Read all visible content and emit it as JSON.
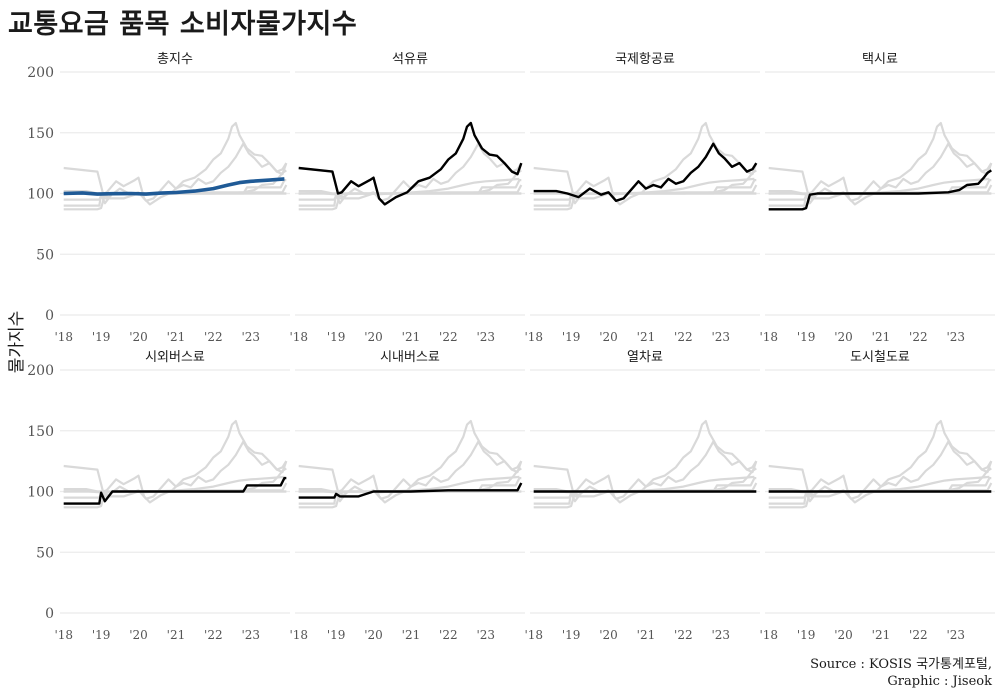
{
  "title": "교통요금 품목 소비자물가지수",
  "caption": {
    "line1": "Source : KOSIS 국가통계포털,",
    "line2": "Graphic : Jiseok"
  },
  "colors": {
    "highlight": "#1f5a96",
    "line": "#000000",
    "ghost": "#d9d9d9",
    "grid": "#ebebeb"
  },
  "chart_data": {
    "type": "line",
    "facets": [
      "총지수",
      "석유류",
      "국제항공료",
      "택시료",
      "시외버스료",
      "시내버스료",
      "열차료",
      "도시철도료"
    ],
    "ylabel": "물가지수",
    "ylim": [
      0,
      200
    ],
    "yticks": [
      0,
      50,
      100,
      150,
      200
    ],
    "xlim": [
      2017.9,
      2024.05
    ],
    "xticks": [
      2018,
      2019,
      2020,
      2021,
      2022,
      2023
    ],
    "xtick_labels": [
      "'18",
      "'19",
      "'20",
      "'21",
      "'22",
      "'23"
    ],
    "series": [
      {
        "name": "총지수",
        "x": [
          2018,
          2018.5,
          2018.9,
          2019.3,
          2019.8,
          2020.2,
          2020.6,
          2021.0,
          2021.5,
          2022.0,
          2022.4,
          2022.7,
          2023.0,
          2023.5,
          2023.9
        ],
        "y": [
          100,
          100.5,
          99.5,
          99.8,
          100,
          99.5,
          100.3,
          100.8,
          102,
          104,
          107,
          109,
          110,
          111,
          112
        ]
      },
      {
        "name": "석유류",
        "x": [
          2018,
          2018.9,
          2019.05,
          2019.15,
          2019.4,
          2019.6,
          2019.9,
          2020.0,
          2020.15,
          2020.3,
          2020.6,
          2020.9,
          2021.0,
          2021.2,
          2021.5,
          2021.8,
          2022.0,
          2022.2,
          2022.4,
          2022.5,
          2022.6,
          2022.7,
          2022.9,
          2023.1,
          2023.3,
          2023.5,
          2023.7,
          2023.85,
          2023.95
        ],
        "y": [
          121,
          118,
          100,
          101,
          110,
          106,
          111,
          113,
          96,
          91,
          97,
          101,
          104,
          110,
          113,
          120,
          128,
          133,
          145,
          155,
          158,
          148,
          137,
          132,
          131,
          125,
          118,
          116,
          125
        ]
      },
      {
        "name": "국제항공료",
        "x": [
          2018,
          2018.6,
          2018.9,
          2019.2,
          2019.5,
          2019.8,
          2020.0,
          2020.2,
          2020.4,
          2020.6,
          2020.8,
          2021.0,
          2021.2,
          2021.4,
          2021.6,
          2021.8,
          2022.0,
          2022.2,
          2022.4,
          2022.6,
          2022.8,
          2022.95,
          2023.1,
          2023.3,
          2023.5,
          2023.7,
          2023.85,
          2023.95
        ],
        "y": [
          102,
          102,
          100,
          97,
          104,
          99,
          101,
          94,
          96,
          103,
          110,
          104,
          107,
          105,
          112,
          108,
          110,
          117,
          122,
          130,
          141,
          133,
          129,
          122,
          125,
          118,
          120,
          125
        ]
      },
      {
        "name": "택시료",
        "x": [
          2018,
          2018.9,
          2019.0,
          2019.1,
          2019.3,
          2019.5,
          2020.0,
          2021.0,
          2022.0,
          2022.8,
          2023.1,
          2023.3,
          2023.6,
          2023.75,
          2023.85,
          2023.95
        ],
        "y": [
          87,
          87,
          88,
          99,
          100,
          100,
          100,
          100,
          100,
          101,
          103,
          107,
          108,
          113,
          117,
          119
        ]
      },
      {
        "name": "시외버스료",
        "x": [
          2018,
          2018.95,
          2019.0,
          2019.1,
          2019.3,
          2020.0,
          2021.0,
          2022.0,
          2022.8,
          2022.9,
          2023.5,
          2023.8,
          2023.9,
          2023.95
        ],
        "y": [
          90,
          90,
          99,
          92,
          100,
          100,
          100,
          100,
          100,
          105,
          105,
          105,
          111,
          111
        ]
      },
      {
        "name": "시내버스료",
        "x": [
          2018,
          2018.95,
          2019.0,
          2019.1,
          2019.6,
          2019.8,
          2020.0,
          2020.5,
          2021.0,
          2022.0,
          2023.0,
          2023.5,
          2023.85,
          2023.95
        ],
        "y": [
          95,
          95,
          98,
          96,
          96,
          98,
          100,
          100,
          100,
          101,
          101,
          101,
          101,
          107
        ]
      },
      {
        "name": "열차료",
        "x": [
          2018,
          2019,
          2020,
          2021,
          2022,
          2023,
          2023.95
        ],
        "y": [
          100,
          100,
          100,
          100,
          100,
          100,
          100
        ]
      },
      {
        "name": "도시철도료",
        "x": [
          2018,
          2019,
          2020,
          2021,
          2022,
          2023,
          2023.95
        ],
        "y": [
          100,
          100,
          100,
          100,
          100,
          100,
          100
        ]
      }
    ],
    "highlight_series": "총지수"
  }
}
